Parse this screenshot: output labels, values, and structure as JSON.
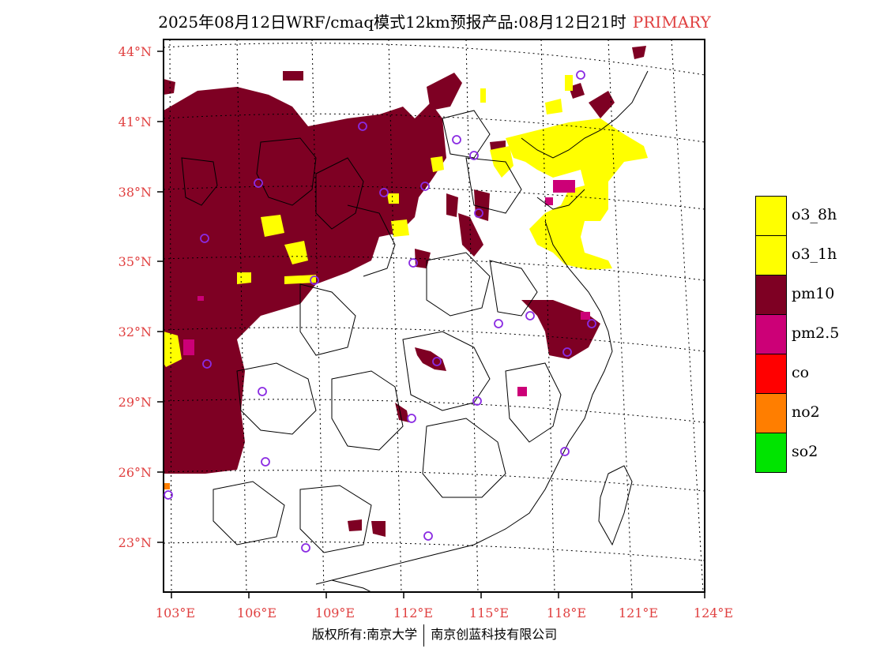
{
  "title": {
    "main": "2025年08月12日WRF/cmaq模式12km预报产品:08月12日21时",
    "tag": "PRIMARY"
  },
  "axes": {
    "lon_labels": [
      "103°E",
      "106°E",
      "109°E",
      "112°E",
      "115°E",
      "118°E",
      "121°E",
      "124°E"
    ],
    "lat_labels": [
      "44°N",
      "41°N",
      "38°N",
      "35°N",
      "32°N",
      "29°N",
      "26°N",
      "23°N"
    ],
    "label_color": "#e04040"
  },
  "legend": [
    {
      "label": "o3_8h",
      "color": "#ffff00"
    },
    {
      "label": "o3_1h",
      "color": "#ffff00"
    },
    {
      "label": "pm10",
      "color": "#7e0023"
    },
    {
      "label": "pm2.5",
      "color": "#cc0077"
    },
    {
      "label": "co",
      "color": "#ff0000"
    },
    {
      "label": "no2",
      "color": "#ff7e00"
    },
    {
      "label": "so2",
      "color": "#00e400"
    }
  ],
  "station_marker_color": "#8a2be2",
  "footer": {
    "left": "版权所有:南京大学",
    "right": "南京创蓝科技有限公司"
  }
}
